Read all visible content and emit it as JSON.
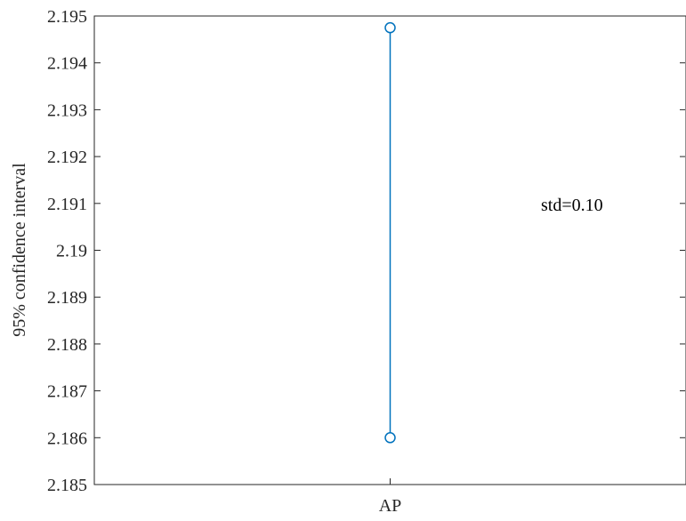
{
  "chart_data": {
    "type": "scatter",
    "title": "",
    "xlabel": "",
    "ylabel": "95% confidence interval",
    "categories": [
      "AP"
    ],
    "ylim": [
      2.185,
      2.195
    ],
    "yticks": [
      "2.185",
      "2.186",
      "2.187",
      "2.188",
      "2.189",
      "2.19",
      "2.191",
      "2.192",
      "2.193",
      "2.194",
      "2.195"
    ],
    "series": [
      {
        "category": "AP",
        "lower": 2.186,
        "upper": 2.19475
      }
    ],
    "annotation": "std=0.10",
    "grid": false,
    "colors": {
      "series": "#0072BD",
      "axis": "#262626"
    }
  }
}
